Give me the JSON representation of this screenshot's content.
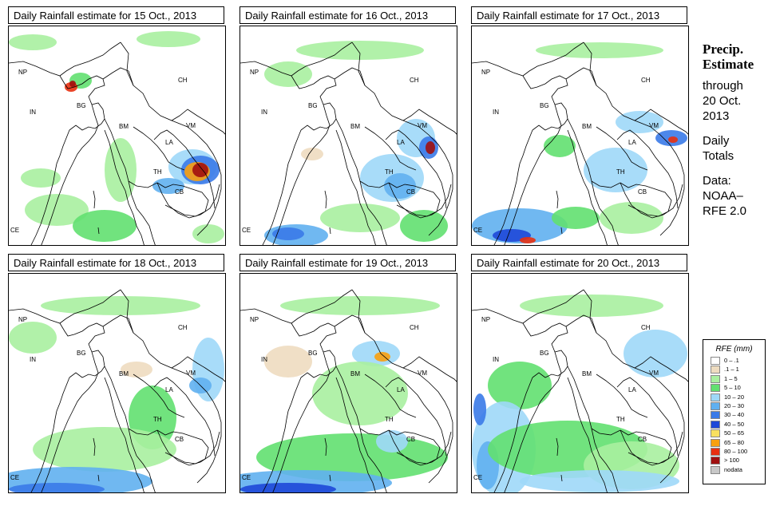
{
  "panels": [
    {
      "title": "Daily Rainfall estimate for  15 Oct., 2013"
    },
    {
      "title": "Daily Rainfall estimate for  16 Oct., 2013"
    },
    {
      "title": "Daily Rainfall estimate for  17 Oct., 2013"
    },
    {
      "title": "Daily Rainfall estimate for  18 Oct., 2013"
    },
    {
      "title": "Daily Rainfall estimate for  19 Oct., 2013"
    },
    {
      "title": "Daily Rainfall estimate for  20 Oct., 2013"
    }
  ],
  "country_labels": {
    "np": "NP",
    "ch": "CH",
    "in": "IN",
    "bg": "BG",
    "bm": "BM",
    "vm": "VM",
    "la": "LA",
    "th": "TH",
    "cb": "CB",
    "ce": "CE"
  },
  "sidebar": {
    "heading_1": "Precip.",
    "heading_2": "Estimate",
    "through": "through",
    "date_1": "20 Oct.",
    "date_2": "2013",
    "daily_1": "Daily",
    "daily_2": "Totals",
    "data_1": "Data:",
    "data_2": "NOAA–",
    "data_3": "RFE 2.0"
  },
  "legend": {
    "title": "RFE (mm)",
    "items": [
      {
        "label": "0 – .1",
        "color": "#ffffff"
      },
      {
        "label": ".1 – 1",
        "color": "#eedcc0"
      },
      {
        "label": "1 – 5",
        "color": "#a9f0a0"
      },
      {
        "label": "5 – 10",
        "color": "#62e070"
      },
      {
        "label": "10 – 20",
        "color": "#9ed8f8"
      },
      {
        "label": "20 – 30",
        "color": "#60b0f0"
      },
      {
        "label": "30 – 40",
        "color": "#3a7ae8"
      },
      {
        "label": "40 – 50",
        "color": "#1e48d8"
      },
      {
        "label": "50 – 65",
        "color": "#f8e060"
      },
      {
        "label": "65 – 80",
        "color": "#f8a010"
      },
      {
        "label": "80 – 100",
        "color": "#e83010"
      },
      {
        "label": "> 100",
        "color": "#a01010"
      },
      {
        "label": "nodata",
        "color": "#c8c8c8"
      }
    ]
  }
}
